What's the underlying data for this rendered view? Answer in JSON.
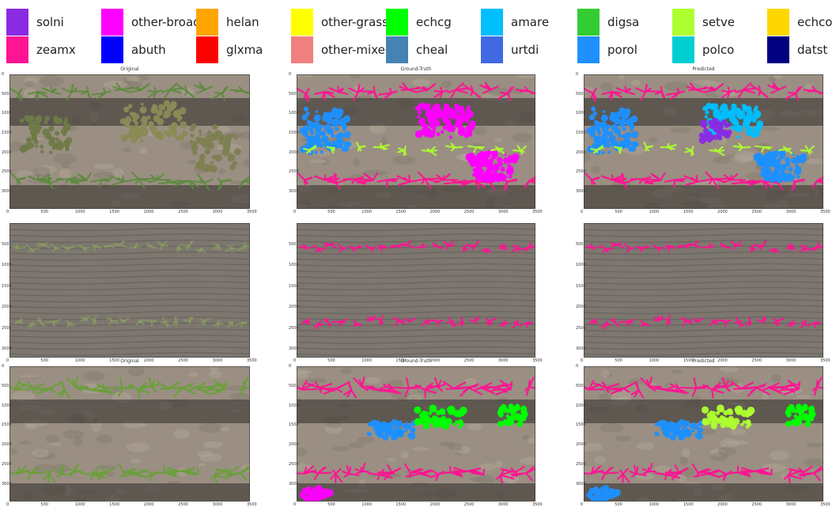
{
  "legend": [
    {
      "label": "solni",
      "color": "#8A2BE2"
    },
    {
      "label": "other-broad",
      "color": "#FF00FF"
    },
    {
      "label": "helan",
      "color": "#FFA500"
    },
    {
      "label": "other-grass",
      "color": "#FFFF00"
    },
    {
      "label": "echcg",
      "color": "#00FF00"
    },
    {
      "label": "amare",
      "color": "#00BFFF"
    },
    {
      "label": "digsa",
      "color": "#32CD32"
    },
    {
      "label": "setve",
      "color": "#ADFF2F"
    },
    {
      "label": "echco",
      "color": "#FFD700"
    },
    {
      "label": "zeamx",
      "color": "#FF1493"
    },
    {
      "label": "abuth",
      "color": "#0000FF"
    },
    {
      "label": "glxma",
      "color": "#FF0000"
    },
    {
      "label": "other-mixed",
      "color": "#F08080"
    },
    {
      "label": "cheal",
      "color": "#4682B4"
    },
    {
      "label": "urtdi",
      "color": "#4169E1"
    },
    {
      "label": "porol",
      "color": "#1E90FF"
    },
    {
      "label": "polco",
      "color": "#00CED1"
    },
    {
      "label": "datst",
      "color": "#000080"
    }
  ],
  "rows": [
    {
      "panels": [
        {
          "title": "Original"
        },
        {
          "title": "Ground-Truth"
        },
        {
          "title": "Predicted"
        }
      ]
    },
    {
      "panels": [
        {
          "title": ""
        },
        {
          "title": ""
        },
        {
          "title": ""
        }
      ]
    },
    {
      "panels": [
        {
          "title": "Original"
        },
        {
          "title": "Ground-Truth"
        },
        {
          "title": "Predicted"
        }
      ]
    }
  ],
  "axis": {
    "x_ticks": [
      "0",
      "500",
      "1000",
      "1500",
      "2000",
      "2500",
      "3000",
      "3500"
    ],
    "y_ticks_row1": [
      "0",
      "500",
      "1000",
      "1500",
      "2000",
      "2500",
      "3000"
    ],
    "y_ticks_row2": [
      "500",
      "1000",
      "1500",
      "2000",
      "2500",
      "3000"
    ],
    "y_ticks_row3": [
      "0",
      "500",
      "1000",
      "1500",
      "2000",
      "2500",
      "3000"
    ]
  }
}
